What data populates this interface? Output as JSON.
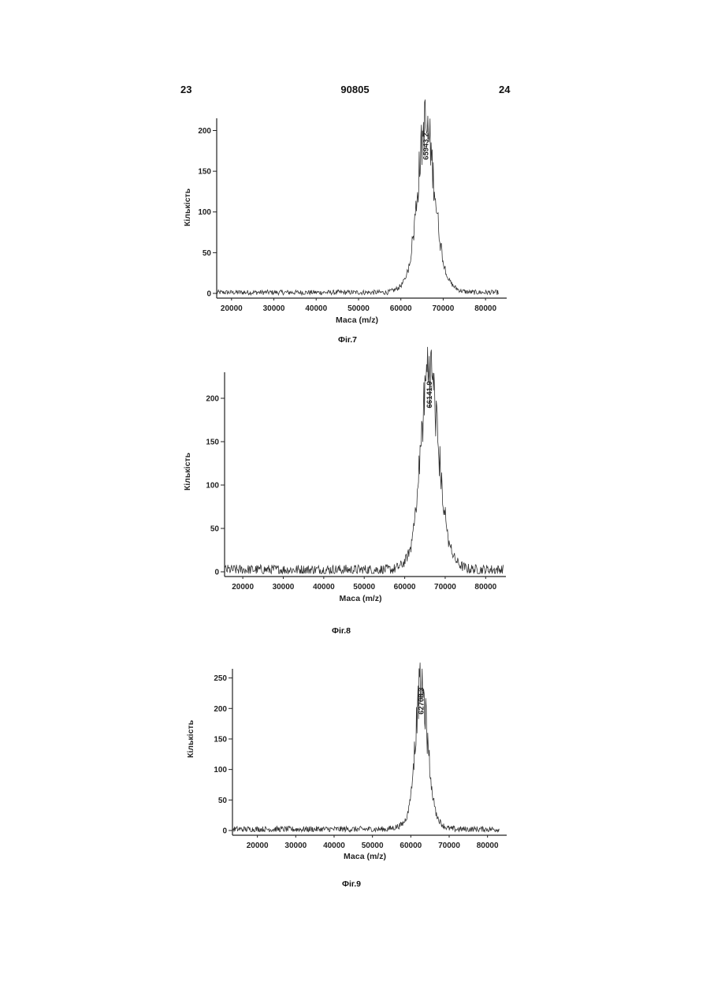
{
  "header": {
    "left_page": "23",
    "doc_number": "90805",
    "right_page": "24"
  },
  "chart_data": [
    {
      "type": "line",
      "caption": "Фіг.7",
      "xlabel": "Маса (m/z)",
      "ylabel": "Кількість",
      "xlim": [
        16500,
        85000
      ],
      "ylim": [
        -10,
        215
      ],
      "xticks": [
        20000,
        30000,
        40000,
        50000,
        60000,
        70000,
        80000
      ],
      "yticks": [
        0,
        50,
        100,
        150,
        200
      ],
      "peak": {
        "label": "65943.2",
        "x": 65943.2,
        "y": 160,
        "width": 1900
      },
      "noise_level": 3,
      "signal_end": 83000,
      "series": [
        {
          "x_range": [
            16500,
            83000
          ]
        }
      ]
    },
    {
      "type": "line",
      "caption": "Фіг.8",
      "xlabel": "Маса (m/z)",
      "ylabel": "Кількість",
      "xlim": [
        15500,
        85000
      ],
      "ylim": [
        -10,
        230
      ],
      "xticks": [
        20000,
        30000,
        40000,
        50000,
        60000,
        70000,
        80000
      ],
      "yticks": [
        0,
        50,
        100,
        150,
        200
      ],
      "peak": {
        "label": "66141.9",
        "x": 66141.9,
        "y": 185,
        "width": 2000
      },
      "noise_level": 6,
      "signal_end": 84500,
      "series": [
        {
          "x_range": [
            15500,
            84500
          ]
        }
      ]
    },
    {
      "type": "line",
      "caption": "Фіг.9",
      "xlabel": "Маса (m/z)",
      "ylabel": "Кількість",
      "xlim": [
        13500,
        85000
      ],
      "ylim": [
        -10,
        265
      ],
      "xticks": [
        20000,
        30000,
        40000,
        50000,
        60000,
        70000,
        80000
      ],
      "yticks": [
        0,
        50,
        100,
        150,
        200,
        250
      ],
      "peak": {
        "label": "62708.3",
        "x": 62708.3,
        "y": 185,
        "width": 1500
      },
      "noise_level": 5,
      "signal_end": 83000,
      "series": [
        {
          "x_range": [
            13500,
            83000
          ]
        }
      ]
    }
  ]
}
